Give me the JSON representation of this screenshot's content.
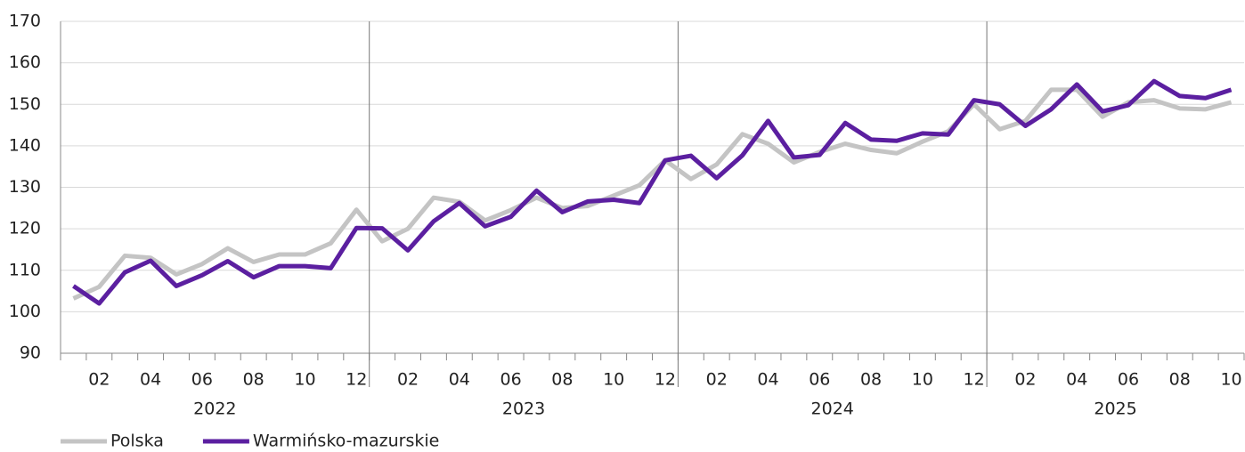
{
  "chart_data": {
    "type": "line",
    "categories": [
      null,
      "02",
      null,
      "04",
      null,
      "06",
      null,
      "08",
      null,
      "10",
      null,
      "12",
      null,
      "02",
      null,
      "04",
      null,
      "06",
      null,
      "08",
      null,
      "10",
      null,
      "12",
      null,
      "02",
      null,
      "04",
      null,
      "06",
      null,
      "08",
      null,
      "10",
      null,
      "12",
      null,
      "02",
      null,
      "04",
      null,
      "06",
      null,
      "08",
      null,
      "10"
    ],
    "year_labels": [
      "2022",
      "2023",
      "2024",
      "2025"
    ],
    "series": [
      {
        "name": "Polska",
        "color": "#c4c4c4",
        "values": [
          103.2,
          106,
          113.5,
          113,
          109,
          111.5,
          115.3,
          112,
          113.8,
          113.8,
          116.5,
          124.6,
          117,
          120,
          127.5,
          126.5,
          122,
          124.5,
          127.5,
          125,
          125.5,
          128,
          130.5,
          136.5,
          132,
          135.5,
          142.8,
          140.5,
          136,
          138.5,
          140.5,
          139,
          138.2,
          141,
          143.5,
          150,
          144,
          146,
          153.5,
          153.5,
          147,
          150.5,
          151,
          149,
          148.8,
          150.5
        ]
      },
      {
        "name": "Warmińsko-mazurskie",
        "color": "#5b1fa0",
        "values": [
          106.2,
          102,
          109.5,
          112.3,
          106.2,
          108.8,
          112.2,
          108.3,
          111,
          111,
          110.5,
          120.2,
          120.1,
          114.8,
          121.8,
          126.2,
          120.6,
          122.9,
          129.2,
          124,
          126.6,
          127,
          126.2,
          136.5,
          137.6,
          132.2,
          137.7,
          146,
          137.2,
          137.8,
          145.5,
          141.5,
          141.2,
          143,
          142.7,
          151,
          150,
          144.8,
          148.8,
          154.8,
          148.3,
          149.8,
          155.6,
          152,
          151.5,
          153.5
        ]
      }
    ],
    "ylim": [
      90,
      170
    ],
    "yticks": [
      90,
      100,
      110,
      120,
      130,
      140,
      150,
      160,
      170
    ],
    "grid": true,
    "legend": "bottom-left"
  }
}
